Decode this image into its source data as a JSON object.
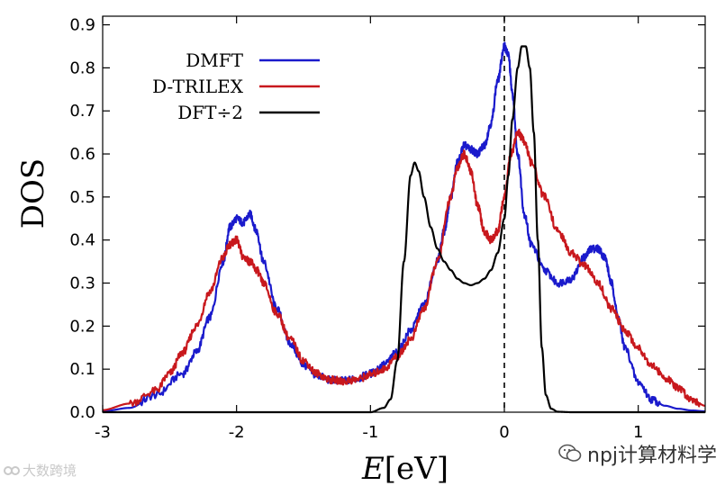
{
  "chart_data": {
    "type": "line",
    "title": "",
    "ylabel": "DOS",
    "xlabel": "E[eV]",
    "xlabel_italic_part": "E",
    "xlabel_unit_part": "[eV]",
    "xlim": [
      -3,
      1.5
    ],
    "ylim": [
      0,
      0.92
    ],
    "xticks": [
      -3,
      -2,
      -1,
      0,
      1
    ],
    "xtick_labels": [
      "-3",
      "-2",
      "-1",
      "0",
      "1"
    ],
    "yticks": [
      0,
      0.1,
      0.2,
      0.3,
      0.4,
      0.5,
      0.6,
      0.7,
      0.8,
      0.9
    ],
    "ytick_labels": [
      "0.0",
      "0.1",
      "0.2",
      "0.3",
      "0.4",
      "0.5",
      "0.6",
      "0.7",
      "0.8",
      "0.9"
    ],
    "fermi_line_x": 0,
    "legend_position": "top-left",
    "series": [
      {
        "name": "DMFT",
        "color": "#1a1acc",
        "x": [
          -3.0,
          -2.8,
          -2.6,
          -2.4,
          -2.3,
          -2.2,
          -2.1,
          -2.05,
          -2.0,
          -1.95,
          -1.9,
          -1.85,
          -1.8,
          -1.7,
          -1.6,
          -1.5,
          -1.4,
          -1.3,
          -1.2,
          -1.1,
          -1.0,
          -0.9,
          -0.8,
          -0.7,
          -0.6,
          -0.5,
          -0.45,
          -0.4,
          -0.35,
          -0.3,
          -0.25,
          -0.2,
          -0.15,
          -0.1,
          -0.05,
          0.0,
          0.03,
          0.06,
          0.1,
          0.15,
          0.2,
          0.3,
          0.4,
          0.5,
          0.6,
          0.65,
          0.7,
          0.75,
          0.8,
          0.85,
          0.9,
          1.0,
          1.1,
          1.2,
          1.3,
          1.4,
          1.5
        ],
        "y": [
          0.002,
          0.01,
          0.04,
          0.09,
          0.14,
          0.22,
          0.35,
          0.43,
          0.45,
          0.44,
          0.46,
          0.42,
          0.35,
          0.24,
          0.16,
          0.11,
          0.085,
          0.075,
          0.073,
          0.078,
          0.09,
          0.11,
          0.14,
          0.19,
          0.25,
          0.35,
          0.42,
          0.5,
          0.58,
          0.62,
          0.61,
          0.6,
          0.62,
          0.67,
          0.77,
          0.85,
          0.83,
          0.74,
          0.6,
          0.46,
          0.39,
          0.33,
          0.3,
          0.31,
          0.36,
          0.38,
          0.38,
          0.36,
          0.3,
          0.22,
          0.15,
          0.07,
          0.03,
          0.015,
          0.008,
          0.004,
          0.002
        ]
      },
      {
        "name": "D-TRILEX",
        "color": "#c8181d",
        "x": [
          -3.0,
          -2.8,
          -2.6,
          -2.5,
          -2.4,
          -2.3,
          -2.2,
          -2.1,
          -2.05,
          -2.0,
          -1.95,
          -1.9,
          -1.85,
          -1.8,
          -1.7,
          -1.6,
          -1.5,
          -1.4,
          -1.3,
          -1.2,
          -1.1,
          -1.0,
          -0.9,
          -0.8,
          -0.7,
          -0.6,
          -0.5,
          -0.4,
          -0.35,
          -0.3,
          -0.25,
          -0.2,
          -0.15,
          -0.1,
          -0.05,
          0.0,
          0.05,
          0.1,
          0.15,
          0.2,
          0.3,
          0.4,
          0.5,
          0.6,
          0.7,
          0.8,
          0.9,
          1.0,
          1.1,
          1.2,
          1.3,
          1.4,
          1.5
        ],
        "y": [
          0.005,
          0.02,
          0.05,
          0.09,
          0.14,
          0.2,
          0.28,
          0.36,
          0.39,
          0.4,
          0.36,
          0.35,
          0.33,
          0.3,
          0.23,
          0.17,
          0.12,
          0.09,
          0.075,
          0.072,
          0.076,
          0.087,
          0.1,
          0.13,
          0.17,
          0.24,
          0.35,
          0.5,
          0.57,
          0.6,
          0.56,
          0.48,
          0.42,
          0.4,
          0.42,
          0.5,
          0.6,
          0.65,
          0.63,
          0.58,
          0.5,
          0.42,
          0.37,
          0.34,
          0.3,
          0.24,
          0.19,
          0.15,
          0.11,
          0.08,
          0.055,
          0.03,
          0.015
        ]
      },
      {
        "name": "DFT÷2",
        "color": "#000000",
        "x": [
          -3.0,
          -1.0,
          -0.9,
          -0.85,
          -0.8,
          -0.75,
          -0.7,
          -0.67,
          -0.64,
          -0.6,
          -0.55,
          -0.5,
          -0.45,
          -0.4,
          -0.35,
          -0.3,
          -0.25,
          -0.2,
          -0.15,
          -0.1,
          -0.05,
          0.0,
          0.03,
          0.06,
          0.1,
          0.13,
          0.16,
          0.19,
          0.22,
          0.25,
          0.28,
          0.31,
          0.35,
          0.4,
          0.5,
          1.5
        ],
        "y": [
          0.0,
          0.0,
          0.01,
          0.03,
          0.12,
          0.35,
          0.55,
          0.58,
          0.56,
          0.5,
          0.43,
          0.38,
          0.35,
          0.33,
          0.31,
          0.3,
          0.295,
          0.3,
          0.31,
          0.33,
          0.37,
          0.45,
          0.55,
          0.68,
          0.8,
          0.85,
          0.85,
          0.8,
          0.65,
          0.4,
          0.15,
          0.04,
          0.008,
          0.001,
          0.0,
          0.0
        ]
      }
    ]
  },
  "watermarks": {
    "left_text": "大数跨境",
    "right_text": "npj计算材料学"
  }
}
